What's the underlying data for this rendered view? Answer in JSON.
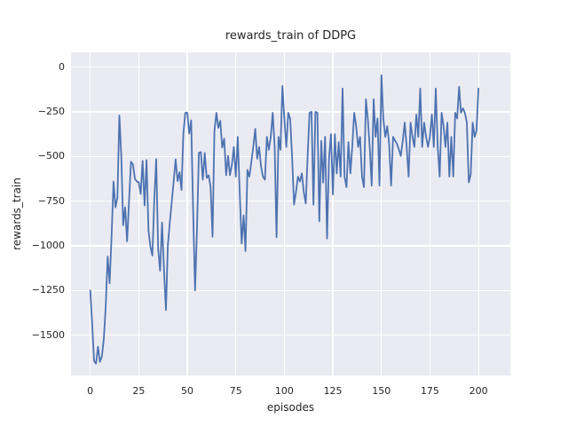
{
  "figure": {
    "background": "#ffffff",
    "axes_background": "#eaeaf2",
    "grid_color": "#ffffff",
    "text_color": "#262626"
  },
  "chart_data": {
    "type": "line",
    "title": "rewards_train of DDPG",
    "xlabel": "episodes",
    "ylabel": "rewards_train",
    "grid": true,
    "legend": "none",
    "line_color": "#4c72b0",
    "line_width": 1.8,
    "x_ticks": [
      0,
      25,
      50,
      75,
      100,
      125,
      150,
      175,
      200
    ],
    "x_tick_labels": [
      "0",
      "25",
      "50",
      "75",
      "100",
      "125",
      "150",
      "175",
      "200"
    ],
    "y_ticks": [
      0,
      -250,
      -500,
      -750,
      -1000,
      -1250,
      -1500
    ],
    "y_tick_labels": [
      "0",
      "−250",
      "−500",
      "−750",
      "−1000",
      "−1250",
      "−1500"
    ],
    "xlim": [
      -9.9,
      216.4
    ],
    "ylim": [
      -1726,
      83
    ],
    "series": [
      {
        "name": "rewards_train",
        "x_start": 0,
        "x_step": 1,
        "y": [
          -1250,
          -1430,
          -1645,
          -1660,
          -1565,
          -1650,
          -1620,
          -1520,
          -1330,
          -1060,
          -1210,
          -950,
          -640,
          -785,
          -730,
          -270,
          -500,
          -885,
          -785,
          -975,
          -750,
          -530,
          -545,
          -625,
          -640,
          -645,
          -710,
          -525,
          -775,
          -520,
          -913,
          -1005,
          -1055,
          -750,
          -515,
          -1017,
          -1140,
          -870,
          -1140,
          -1360,
          -1000,
          -872,
          -755,
          -638,
          -517,
          -638,
          -588,
          -688,
          -372,
          -255,
          -255,
          -372,
          -297,
          -800,
          -1250,
          -900,
          -480,
          -475,
          -630,
          -480,
          -620,
          -605,
          -672,
          -950,
          -360,
          -255,
          -340,
          -300,
          -450,
          -400,
          -605,
          -497,
          -605,
          -545,
          -447,
          -613,
          -390,
          -700,
          -988,
          -830,
          -1030,
          -575,
          -613,
          -530,
          -447,
          -345,
          -513,
          -447,
          -555,
          -613,
          -630,
          -390,
          -463,
          -390,
          -255,
          -447,
          -952,
          -390,
          -463,
          -105,
          -290,
          -447,
          -255,
          -290,
          -500,
          -770,
          -700,
          -613,
          -640,
          -595,
          -700,
          -763,
          -500,
          -255,
          -250,
          -770,
          -250,
          -255,
          -863,
          -413,
          -646,
          -390,
          -960,
          -513,
          -375,
          -713,
          -375,
          -595,
          -420,
          -613,
          -120,
          -613,
          -672,
          -420,
          -595,
          -447,
          -255,
          -330,
          -447,
          -390,
          -613,
          -672,
          -180,
          -287,
          -447,
          -663,
          -180,
          -390,
          -287,
          -663,
          -45,
          -287,
          -390,
          -330,
          -430,
          -663,
          -390,
          -410,
          -430,
          -460,
          -497,
          -413,
          -310,
          -447,
          -613,
          -310,
          -390,
          -447,
          -265,
          -390,
          -120,
          -447,
          -310,
          -390,
          -447,
          -390,
          -265,
          -447,
          -120,
          -447,
          -613,
          -255,
          -330,
          -447,
          -310,
          -613,
          -390,
          -613,
          -255,
          -287,
          -110,
          -255,
          -230,
          -255,
          -310,
          -645,
          -600,
          -310,
          -390,
          -355,
          -120
        ]
      }
    ]
  }
}
